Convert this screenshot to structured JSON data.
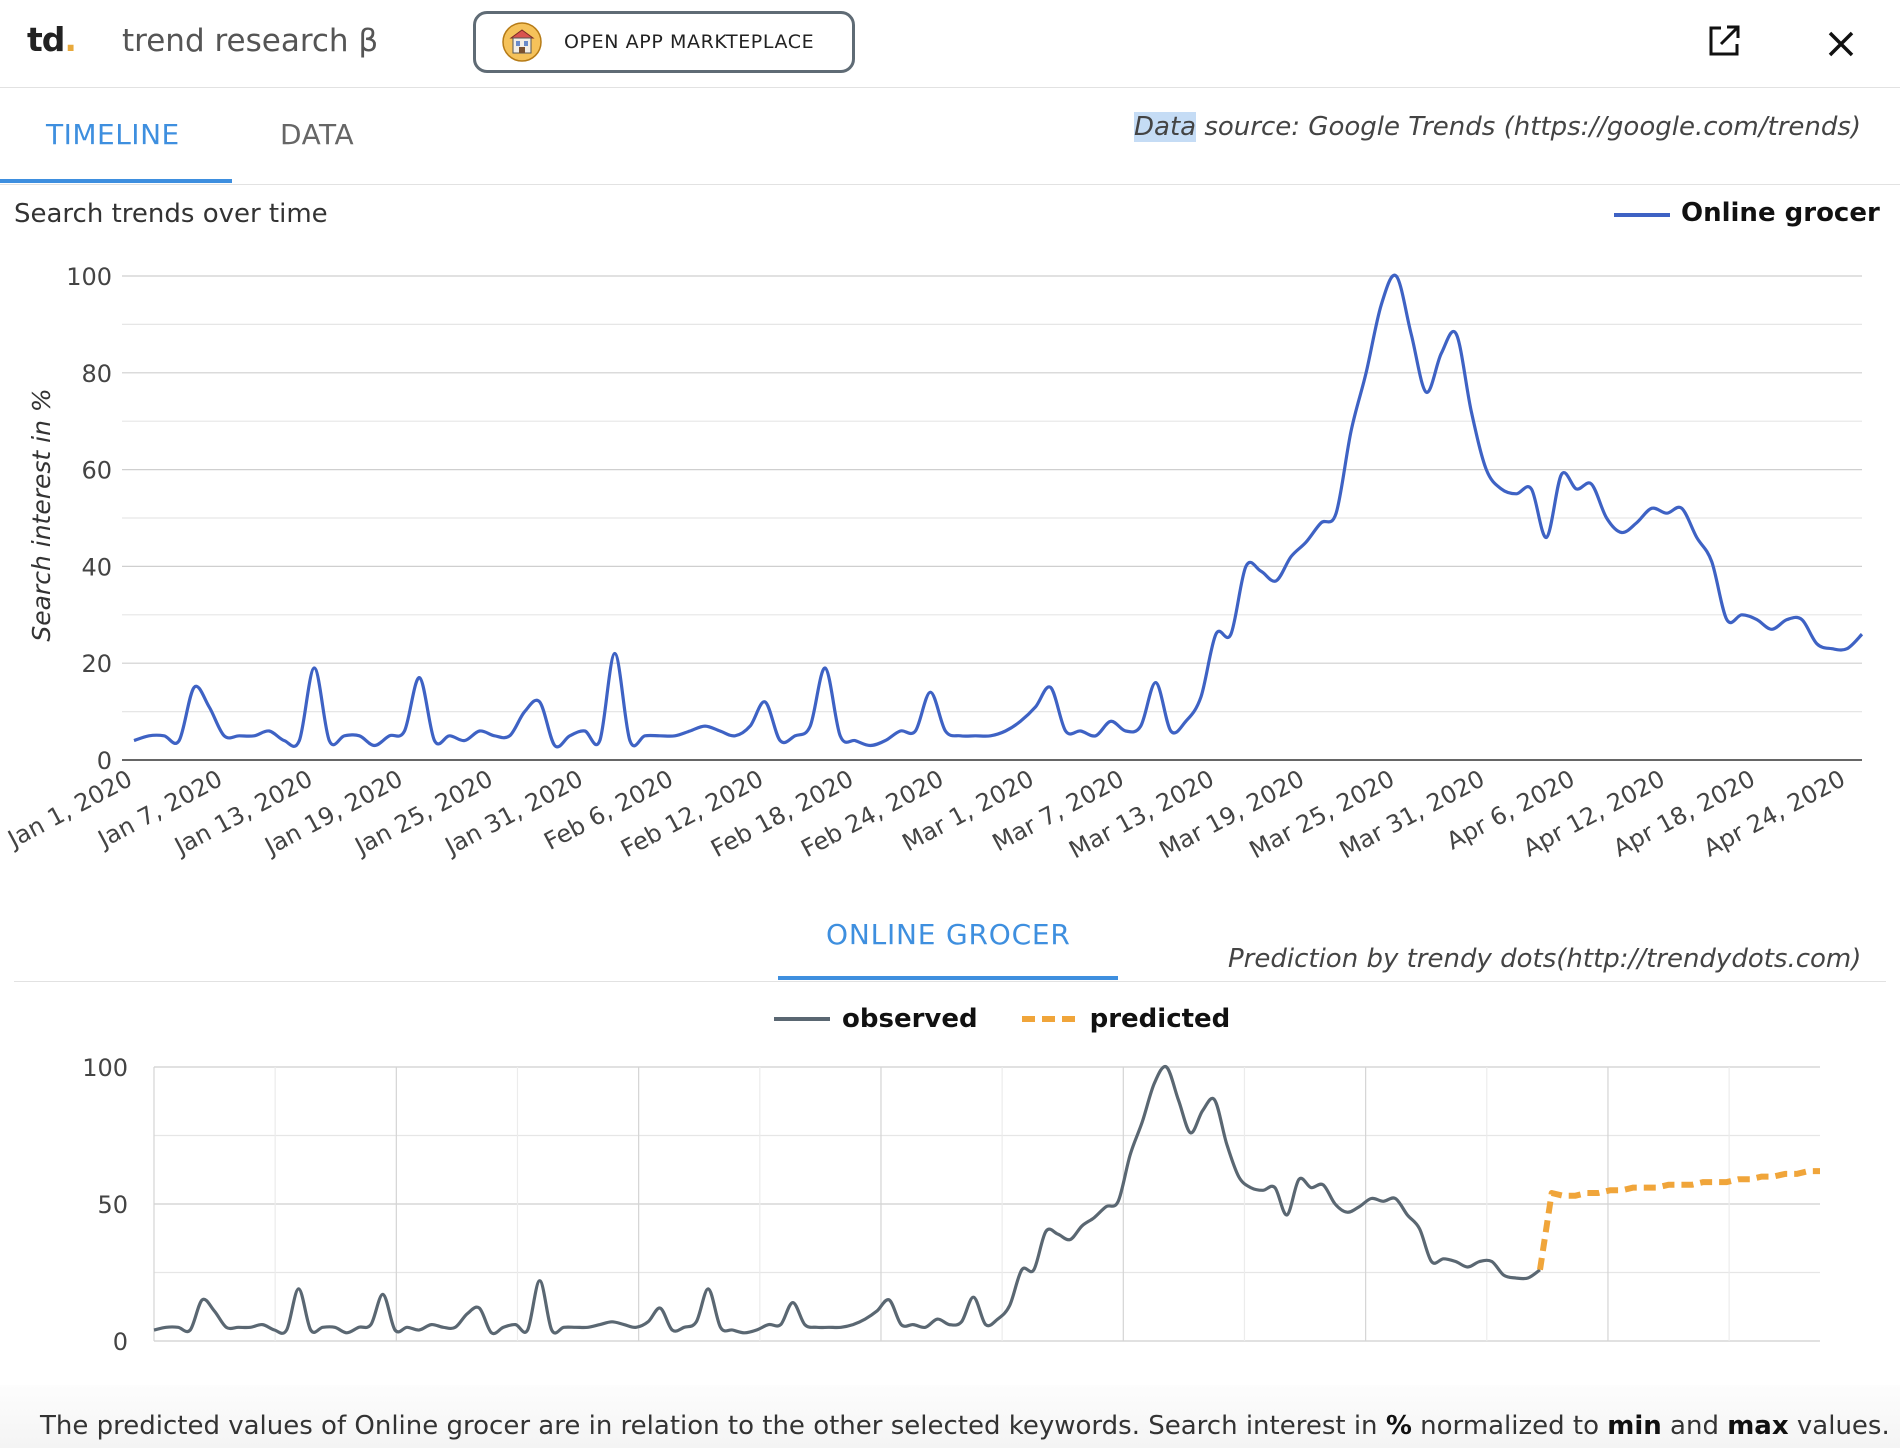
{
  "header": {
    "logo_text": "td",
    "logo_dot": ".",
    "app_title": "trend research β",
    "marketplace_button": "OPEN APP MARKTEPLACE",
    "icons": [
      "marketplace-icon",
      "open-external-icon",
      "close-icon"
    ]
  },
  "tabs": [
    {
      "label": "TIMELINE",
      "active": true
    },
    {
      "label": "DATA",
      "active": false
    }
  ],
  "data_source": {
    "highlight": "Data",
    "rest": " source: Google Trends (https://google.com/trends)"
  },
  "chart_title": "Search trends over time",
  "prediction_section": {
    "title": "ONLINE GROCER",
    "credit": "Prediction by trendy dots(http://trendydots.com)",
    "legend": {
      "observed": "observed",
      "predicted": "predicted"
    }
  },
  "footnote": {
    "part1": "The predicted values of Online grocer are in relation to the other selected keywords. Search interest in ",
    "pct": "%",
    "part2": " normalized to ",
    "min": "min",
    "part3": " and ",
    "max": "max",
    "part4": " values."
  },
  "colors": {
    "series": "#3e62c4",
    "observed": "#5a6772",
    "predicted": "#f0a53a",
    "accent": "#3e8fdf"
  },
  "chart_data": [
    {
      "type": "line",
      "title": "Search trends over time",
      "ylabel": "Search interest in %",
      "xlabel": "",
      "ylim": [
        0,
        100
      ],
      "yticks": [
        0,
        20,
        40,
        60,
        80,
        100
      ],
      "grid": true,
      "legend_position": "top-right",
      "x_tick_labels": [
        "Jan 1, 2020",
        "Jan 7, 2020",
        "Jan 13, 2020",
        "Jan 19, 2020",
        "Jan 25, 2020",
        "Jan 31, 2020",
        "Feb 6, 2020",
        "Feb 12, 2020",
        "Feb 18, 2020",
        "Feb 24, 2020",
        "Mar 1, 2020",
        "Mar 7, 2020",
        "Mar 13, 2020",
        "Mar 19, 2020",
        "Mar 25, 2020",
        "Mar 31, 2020",
        "Apr 6, 2020",
        "Apr 12, 2020",
        "Apr 18, 2020",
        "Apr 24, 2020"
      ],
      "x_start": "Jan 1, 2020",
      "x_end": "Apr 25, 2020",
      "series": [
        {
          "name": "Online grocer",
          "values": [
            4,
            5,
            5,
            4,
            15,
            11,
            5,
            5,
            5,
            6,
            4,
            4,
            19,
            4,
            5,
            5,
            3,
            5,
            6,
            17,
            4,
            5,
            4,
            6,
            5,
            5,
            10,
            12,
            3,
            5,
            6,
            4,
            22,
            4,
            5,
            5,
            5,
            6,
            7,
            6,
            5,
            7,
            12,
            4,
            5,
            7,
            19,
            5,
            4,
            3,
            4,
            6,
            6,
            14,
            6,
            5,
            5,
            5,
            6,
            8,
            11,
            15,
            6,
            6,
            5,
            8,
            6,
            7,
            16,
            6,
            8,
            13,
            26,
            26,
            40,
            39,
            37,
            42,
            45,
            49,
            51,
            68,
            80,
            94,
            100,
            88,
            76,
            84,
            88,
            72,
            60,
            56,
            55,
            56,
            46,
            59,
            56,
            57,
            50,
            47,
            49,
            52,
            51,
            52,
            46,
            41,
            29,
            30,
            29,
            27,
            29,
            29,
            24,
            23,
            23,
            26
          ]
        }
      ]
    },
    {
      "type": "line",
      "title": "ONLINE GROCER",
      "ylim": [
        0,
        100
      ],
      "yticks": [
        0,
        50,
        100
      ],
      "grid": true,
      "legend_position": "top-center",
      "series": [
        {
          "name": "observed",
          "values": [
            4,
            5,
            5,
            4,
            15,
            11,
            5,
            5,
            5,
            6,
            4,
            4,
            19,
            4,
            5,
            5,
            3,
            5,
            6,
            17,
            4,
            5,
            4,
            6,
            5,
            5,
            10,
            12,
            3,
            5,
            6,
            4,
            22,
            4,
            5,
            5,
            5,
            6,
            7,
            6,
            5,
            7,
            12,
            4,
            5,
            7,
            19,
            5,
            4,
            3,
            4,
            6,
            6,
            14,
            6,
            5,
            5,
            5,
            6,
            8,
            11,
            15,
            6,
            6,
            5,
            8,
            6,
            7,
            16,
            6,
            8,
            13,
            26,
            26,
            40,
            39,
            37,
            42,
            45,
            49,
            51,
            68,
            80,
            94,
            100,
            88,
            76,
            84,
            88,
            72,
            60,
            56,
            55,
            56,
            46,
            59,
            56,
            57,
            50,
            47,
            49,
            52,
            51,
            52,
            46,
            41,
            29,
            30,
            29,
            27,
            29,
            29,
            24,
            23,
            23,
            26
          ]
        },
        {
          "name": "predicted",
          "values": [
            26,
            54,
            53,
            53,
            54,
            54,
            55,
            55,
            56,
            56,
            56,
            57,
            57,
            57,
            58,
            58,
            58,
            59,
            59,
            60,
            60,
            61,
            61,
            62,
            62
          ]
        }
      ]
    }
  ]
}
